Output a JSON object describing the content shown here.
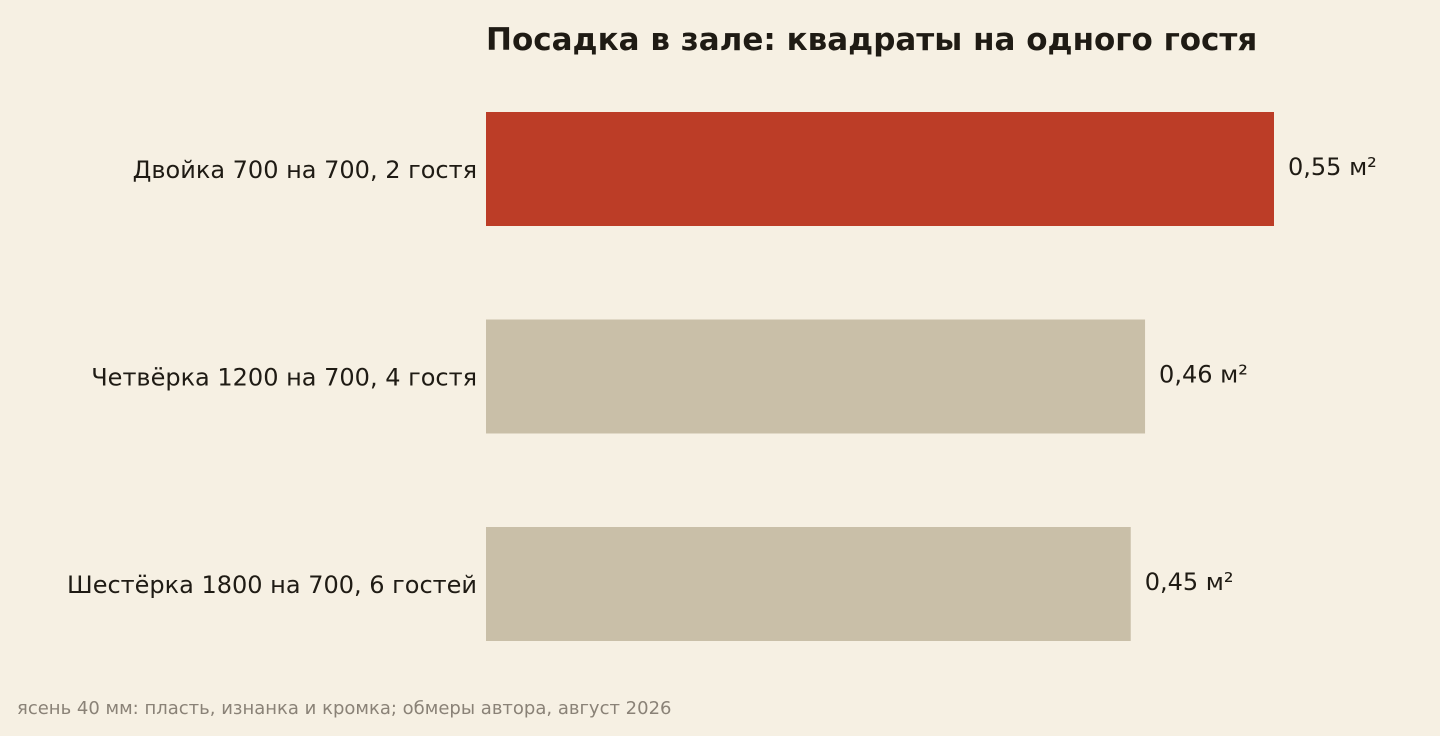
{
  "chart_data": {
    "type": "bar",
    "orientation": "horizontal",
    "title": "Посадка в зале: квадраты на одного гостя",
    "xlabel": "",
    "ylabel": "",
    "categories": [
      "Двойка 700 на 700, 2 гостя",
      "Четвёрка 1200 на 700, 4 гостя",
      "Шестёрка 1800 на 700, 6 гостей"
    ],
    "values": [
      0.55,
      0.46,
      0.45
    ],
    "value_labels": [
      "0,55 м²",
      "0,46 м²",
      "0,45 м²"
    ],
    "unit": "м²",
    "xlim": [
      0,
      0.55
    ],
    "grid": false,
    "legend": "none",
    "colors": {
      "highlight": "#bc3d27",
      "default": "#c9bfa8",
      "background": "#f6f0e3",
      "text": "#1f1b14",
      "footnote": "#8a8277"
    },
    "highlight_index": 0,
    "footnote": "ясень 40 мм: пласть, изнанка и кромка; обмеры автора, август 2026"
  }
}
